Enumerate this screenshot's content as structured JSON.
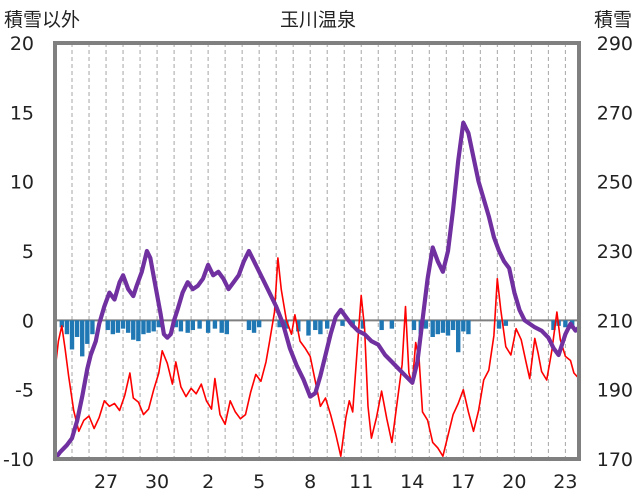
{
  "chart_data": {
    "type": "line",
    "title": "玉川温泉",
    "left_axis": {
      "label": "積雪以外",
      "min": -10,
      "max": 20,
      "ticks": [
        -10,
        -5,
        0,
        5,
        10,
        15,
        20
      ]
    },
    "right_axis": {
      "label": "積雪",
      "min": 170,
      "max": 290,
      "ticks": [
        170,
        190,
        210,
        230,
        250,
        270,
        290
      ]
    },
    "x_ticks": [
      {
        "label": "27",
        "day": 3
      },
      {
        "label": "30",
        "day": 6
      },
      {
        "label": "2",
        "day": 9
      },
      {
        "label": "5",
        "day": 12
      },
      {
        "label": "8",
        "day": 15
      },
      {
        "label": "11",
        "day": 18
      },
      {
        "label": "14",
        "day": 21
      },
      {
        "label": "17",
        "day": 24
      },
      {
        "label": "20",
        "day": 27
      },
      {
        "label": "23",
        "day": 30
      }
    ],
    "x_range": [
      0,
      30.8
    ],
    "grid": "vertical dashed lines daily",
    "series": [
      {
        "role": "snow_depth",
        "axis": "right",
        "color": "#7030a0",
        "points": [
          [
            0.0,
            170
          ],
          [
            0.3,
            172
          ],
          [
            0.7,
            174
          ],
          [
            1.0,
            176
          ],
          [
            1.3,
            181
          ],
          [
            1.6,
            188
          ],
          [
            1.9,
            196
          ],
          [
            2.1,
            200
          ],
          [
            2.4,
            204
          ],
          [
            2.6,
            209
          ],
          [
            2.9,
            214
          ],
          [
            3.2,
            218
          ],
          [
            3.5,
            216
          ],
          [
            3.8,
            221
          ],
          [
            4.0,
            223
          ],
          [
            4.3,
            219
          ],
          [
            4.6,
            217
          ],
          [
            4.8,
            220
          ],
          [
            5.1,
            224
          ],
          [
            5.4,
            230
          ],
          [
            5.6,
            228
          ],
          [
            5.9,
            220
          ],
          [
            6.2,
            212
          ],
          [
            6.4,
            206
          ],
          [
            6.6,
            205
          ],
          [
            6.8,
            206
          ],
          [
            7.0,
            210
          ],
          [
            7.2,
            213
          ],
          [
            7.5,
            218
          ],
          [
            7.8,
            221
          ],
          [
            8.1,
            219
          ],
          [
            8.4,
            220
          ],
          [
            8.7,
            222
          ],
          [
            9.0,
            226
          ],
          [
            9.3,
            223
          ],
          [
            9.6,
            224
          ],
          [
            9.9,
            222
          ],
          [
            10.2,
            219
          ],
          [
            10.5,
            221
          ],
          [
            10.8,
            223
          ],
          [
            11.1,
            227
          ],
          [
            11.4,
            230
          ],
          [
            11.8,
            226
          ],
          [
            12.2,
            222
          ],
          [
            12.6,
            218
          ],
          [
            13.0,
            214
          ],
          [
            13.4,
            209
          ],
          [
            13.8,
            202
          ],
          [
            14.2,
            197
          ],
          [
            14.6,
            193
          ],
          [
            15.0,
            188
          ],
          [
            15.3,
            189
          ],
          [
            15.6,
            194
          ],
          [
            15.9,
            200
          ],
          [
            16.2,
            206
          ],
          [
            16.5,
            211
          ],
          [
            16.8,
            213
          ],
          [
            17.1,
            211
          ],
          [
            17.4,
            209
          ],
          [
            17.8,
            207
          ],
          [
            18.2,
            206
          ],
          [
            18.6,
            204
          ],
          [
            19.0,
            203
          ],
          [
            19.4,
            200
          ],
          [
            19.8,
            198
          ],
          [
            20.2,
            196
          ],
          [
            20.6,
            194
          ],
          [
            21.0,
            192
          ],
          [
            21.3,
            198
          ],
          [
            21.6,
            210
          ],
          [
            21.9,
            222
          ],
          [
            22.2,
            231
          ],
          [
            22.5,
            227
          ],
          [
            22.8,
            224
          ],
          [
            23.1,
            230
          ],
          [
            23.4,
            242
          ],
          [
            23.7,
            256
          ],
          [
            24.0,
            267
          ],
          [
            24.3,
            264
          ],
          [
            24.6,
            257
          ],
          [
            24.9,
            250
          ],
          [
            25.2,
            245
          ],
          [
            25.5,
            240
          ],
          [
            25.8,
            234
          ],
          [
            26.1,
            230
          ],
          [
            26.4,
            227
          ],
          [
            26.7,
            225
          ],
          [
            27.0,
            218
          ],
          [
            27.3,
            213
          ],
          [
            27.6,
            210
          ],
          [
            27.9,
            209
          ],
          [
            28.2,
            208
          ],
          [
            28.6,
            207
          ],
          [
            29.0,
            205
          ],
          [
            29.3,
            202
          ],
          [
            29.6,
            200
          ],
          [
            29.8,
            203
          ],
          [
            30.0,
            206
          ],
          [
            30.3,
            209
          ],
          [
            30.6,
            207
          ],
          [
            30.8,
            208
          ]
        ]
      },
      {
        "role": "temperature",
        "axis": "left",
        "color": "#ff0000",
        "points": [
          [
            0.0,
            -3.6
          ],
          [
            0.2,
            -1.5
          ],
          [
            0.4,
            -0.4
          ],
          [
            0.6,
            -2.1
          ],
          [
            0.8,
            -4.0
          ],
          [
            1.1,
            -6.5
          ],
          [
            1.4,
            -8.0
          ],
          [
            1.7,
            -7.2
          ],
          [
            2.0,
            -6.9
          ],
          [
            2.3,
            -7.8
          ],
          [
            2.6,
            -7.0
          ],
          [
            2.9,
            -5.8
          ],
          [
            3.2,
            -6.2
          ],
          [
            3.5,
            -6.0
          ],
          [
            3.8,
            -6.5
          ],
          [
            4.1,
            -5.4
          ],
          [
            4.4,
            -3.8
          ],
          [
            4.6,
            -5.6
          ],
          [
            4.9,
            -5.9
          ],
          [
            5.2,
            -6.8
          ],
          [
            5.5,
            -6.4
          ],
          [
            5.8,
            -5.0
          ],
          [
            6.1,
            -3.8
          ],
          [
            6.3,
            -2.2
          ],
          [
            6.6,
            -3.1
          ],
          [
            6.9,
            -4.6
          ],
          [
            7.1,
            -3.0
          ],
          [
            7.4,
            -4.8
          ],
          [
            7.7,
            -5.5
          ],
          [
            8.0,
            -4.9
          ],
          [
            8.3,
            -5.3
          ],
          [
            8.6,
            -4.6
          ],
          [
            8.9,
            -5.8
          ],
          [
            9.2,
            -6.4
          ],
          [
            9.4,
            -4.2
          ],
          [
            9.7,
            -6.8
          ],
          [
            10.0,
            -7.5
          ],
          [
            10.3,
            -5.8
          ],
          [
            10.6,
            -6.6
          ],
          [
            10.9,
            -7.1
          ],
          [
            11.2,
            -6.8
          ],
          [
            11.5,
            -5.2
          ],
          [
            11.8,
            -3.9
          ],
          [
            12.1,
            -4.4
          ],
          [
            12.4,
            -3.0
          ],
          [
            12.6,
            -1.6
          ],
          [
            12.9,
            0.6
          ],
          [
            13.1,
            4.5
          ],
          [
            13.3,
            2.2
          ],
          [
            13.6,
            0.0
          ],
          [
            13.9,
            -1.0
          ],
          [
            14.1,
            0.4
          ],
          [
            14.4,
            -1.5
          ],
          [
            14.7,
            -2.0
          ],
          [
            15.0,
            -2.6
          ],
          [
            15.3,
            -4.4
          ],
          [
            15.6,
            -6.2
          ],
          [
            15.9,
            -5.6
          ],
          [
            16.2,
            -6.8
          ],
          [
            16.5,
            -8.2
          ],
          [
            16.8,
            -9.8
          ],
          [
            17.1,
            -7.0
          ],
          [
            17.3,
            -5.8
          ],
          [
            17.5,
            -6.6
          ],
          [
            17.8,
            -1.5
          ],
          [
            18.0,
            1.8
          ],
          [
            18.2,
            -0.6
          ],
          [
            18.4,
            -6.2
          ],
          [
            18.6,
            -8.5
          ],
          [
            18.9,
            -7.0
          ],
          [
            19.2,
            -5.1
          ],
          [
            19.5,
            -7.1
          ],
          [
            19.8,
            -8.8
          ],
          [
            20.1,
            -6.0
          ],
          [
            20.4,
            -3.2
          ],
          [
            20.6,
            1.0
          ],
          [
            20.8,
            -3.8
          ],
          [
            21.0,
            -4.6
          ],
          [
            21.2,
            -1.6
          ],
          [
            21.4,
            -2.8
          ],
          [
            21.6,
            -6.6
          ],
          [
            21.9,
            -7.2
          ],
          [
            22.2,
            -8.8
          ],
          [
            22.5,
            -9.2
          ],
          [
            22.8,
            -9.8
          ],
          [
            23.1,
            -8.3
          ],
          [
            23.4,
            -6.8
          ],
          [
            23.7,
            -6.0
          ],
          [
            24.0,
            -5.0
          ],
          [
            24.3,
            -6.6
          ],
          [
            24.6,
            -8.0
          ],
          [
            24.9,
            -6.5
          ],
          [
            25.2,
            -4.3
          ],
          [
            25.5,
            -3.6
          ],
          [
            25.8,
            -1.1
          ],
          [
            26.0,
            3.0
          ],
          [
            26.2,
            0.8
          ],
          [
            26.5,
            -1.9
          ],
          [
            26.8,
            -2.5
          ],
          [
            27.1,
            -0.6
          ],
          [
            27.4,
            -1.4
          ],
          [
            27.7,
            -3.1
          ],
          [
            27.9,
            -4.2
          ],
          [
            28.2,
            -1.3
          ],
          [
            28.4,
            -2.4
          ],
          [
            28.6,
            -3.7
          ],
          [
            28.9,
            -4.3
          ],
          [
            29.2,
            -2.2
          ],
          [
            29.5,
            0.6
          ],
          [
            29.7,
            -1.4
          ],
          [
            30.0,
            -2.6
          ],
          [
            30.3,
            -2.9
          ],
          [
            30.5,
            -3.8
          ],
          [
            30.8,
            -4.2
          ]
        ]
      },
      {
        "role": "precipitation",
        "axis": "left",
        "color": "#1f77b4",
        "bars": [
          [
            0.4,
            -0.5
          ],
          [
            0.7,
            -1.0
          ],
          [
            1.0,
            -2.1
          ],
          [
            1.3,
            -1.2
          ],
          [
            1.6,
            -2.6
          ],
          [
            1.9,
            -1.7
          ],
          [
            2.2,
            -1.0
          ],
          [
            3.1,
            -0.7
          ],
          [
            3.4,
            -1.0
          ],
          [
            3.7,
            -0.9
          ],
          [
            4.0,
            -0.6
          ],
          [
            4.3,
            -0.9
          ],
          [
            4.6,
            -1.4
          ],
          [
            4.9,
            -1.5
          ],
          [
            5.2,
            -1.0
          ],
          [
            5.5,
            -0.9
          ],
          [
            5.8,
            -0.8
          ],
          [
            6.1,
            -0.5
          ],
          [
            7.1,
            -0.5
          ],
          [
            7.4,
            -0.8
          ],
          [
            7.8,
            -0.9
          ],
          [
            8.1,
            -0.7
          ],
          [
            8.5,
            -0.6
          ],
          [
            9.0,
            -0.9
          ],
          [
            9.4,
            -0.6
          ],
          [
            9.8,
            -0.9
          ],
          [
            10.1,
            -1.0
          ],
          [
            11.4,
            -0.7
          ],
          [
            11.7,
            -0.9
          ],
          [
            12.0,
            -0.5
          ],
          [
            13.2,
            -0.5
          ],
          [
            13.6,
            -0.6
          ],
          [
            14.3,
            -0.8
          ],
          [
            14.9,
            -1.1
          ],
          [
            15.3,
            -0.7
          ],
          [
            15.6,
            -1.0
          ],
          [
            16.0,
            -0.6
          ],
          [
            16.9,
            -0.4
          ],
          [
            17.5,
            -0.5
          ],
          [
            18.1,
            -0.6
          ],
          [
            19.2,
            -0.7
          ],
          [
            19.8,
            -0.6
          ],
          [
            21.1,
            -0.7
          ],
          [
            21.5,
            -1.0
          ],
          [
            21.8,
            -0.6
          ],
          [
            22.2,
            -1.2
          ],
          [
            22.5,
            -1.0
          ],
          [
            22.8,
            -0.9
          ],
          [
            23.1,
            -1.1
          ],
          [
            23.4,
            -0.7
          ],
          [
            23.7,
            -2.3
          ],
          [
            24.0,
            -0.8
          ],
          [
            24.3,
            -1.0
          ],
          [
            26.1,
            -0.6
          ],
          [
            26.5,
            -0.4
          ],
          [
            29.3,
            -0.7
          ],
          [
            29.6,
            -0.4
          ],
          [
            30.0,
            -0.5
          ],
          [
            30.4,
            -0.6
          ]
        ]
      }
    ]
  }
}
